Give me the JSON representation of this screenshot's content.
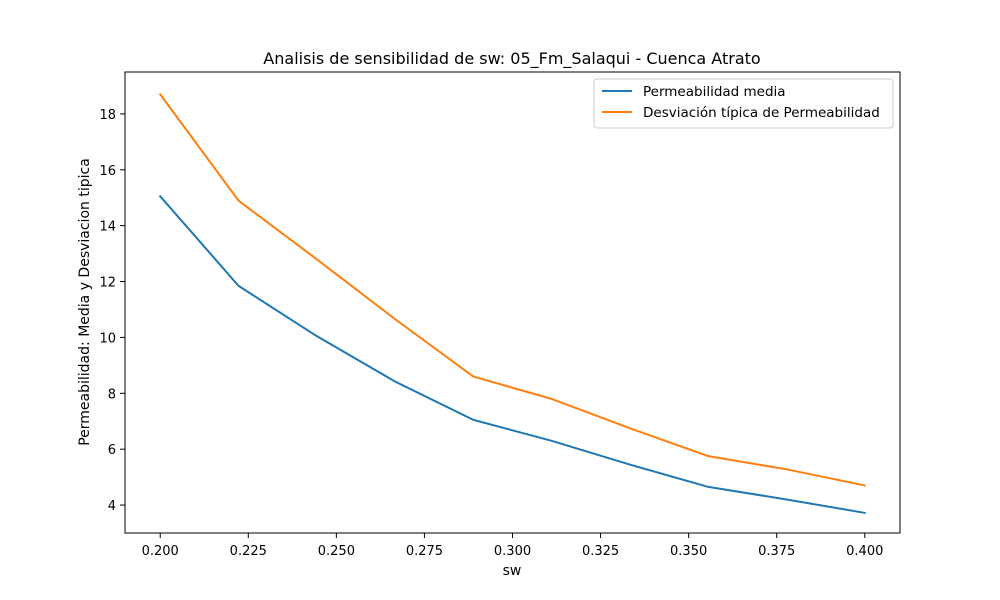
{
  "chart_data": {
    "type": "line",
    "title": "Analisis de sensibilidad de sw: 05_Fm_Salaqui - Cuenca Atrato",
    "xlabel": "sw",
    "ylabel": "Permeabilidad: Media y Desviacion tipica",
    "xlim": [
      0.19,
      0.41
    ],
    "ylim": [
      3.0,
      19.5
    ],
    "xticks": [
      "0.200",
      "0.225",
      "0.250",
      "0.275",
      "0.300",
      "0.325",
      "0.350",
      "0.375",
      "0.400"
    ],
    "yticks": [
      "4",
      "6",
      "8",
      "10",
      "12",
      "14",
      "16",
      "18"
    ],
    "grid": false,
    "legend_position": "top-right",
    "x": [
      0.2,
      0.2222,
      0.2444,
      0.2667,
      0.2889,
      0.3111,
      0.3333,
      0.3556,
      0.3778,
      0.4
    ],
    "series": [
      {
        "name": "Permeabilidad media",
        "color": "#1f77b4",
        "values": [
          15.05,
          11.85,
          10.05,
          8.42,
          7.05,
          6.3,
          5.45,
          4.65,
          4.2,
          3.72
        ]
      },
      {
        "name": "Desviación típica de Permeabilidad",
        "color": "#ff7f0e",
        "values": [
          18.7,
          14.9,
          12.8,
          10.65,
          8.6,
          7.8,
          6.75,
          5.75,
          5.28,
          4.7
        ]
      }
    ]
  }
}
